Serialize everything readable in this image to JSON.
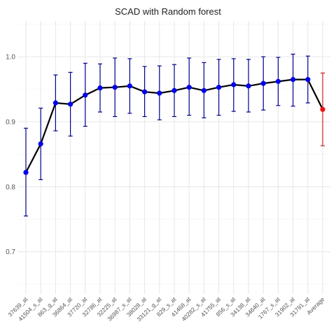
{
  "chart_data": {
    "type": "line",
    "title": "SCAD with Random forest",
    "xlabel": "",
    "ylabel": "",
    "ylim": [
      0.635,
      1.055
    ],
    "yticks": [
      0.7,
      0.8,
      0.9,
      1.0
    ],
    "yticklabels": [
      "0.7",
      "0.8",
      "0.9",
      "1.0"
    ],
    "grid": true,
    "legend": "none",
    "categories": [
      "37639_at",
      "41504_s_at",
      "863_g_at",
      "36864_at",
      "37720_at",
      "32786_at",
      "32225_at",
      "36987_s_at",
      "38028_at",
      "33121_g_at",
      "829_s_at",
      "41468_at",
      "40282_s_at",
      "41755_at",
      "856_s_at",
      "34138_at",
      "34640_at",
      "1767_s_at",
      "31902_at",
      "31791_at",
      "Average"
    ],
    "series": [
      {
        "values": [
          0.822,
          0.866,
          0.929,
          0.927,
          0.941,
          0.952,
          0.953,
          0.955,
          0.946,
          0.944,
          0.948,
          0.953,
          0.948,
          0.953,
          0.957,
          0.955,
          0.959,
          0.962,
          0.965,
          0.965,
          0.919
        ],
        "lower": [
          0.755,
          0.811,
          0.886,
          0.878,
          0.893,
          0.915,
          0.908,
          0.913,
          0.908,
          0.903,
          0.908,
          0.91,
          0.906,
          0.91,
          0.916,
          0.915,
          0.918,
          0.925,
          0.924,
          0.929,
          0.863
        ],
        "upper": [
          0.89,
          0.921,
          0.972,
          0.976,
          0.99,
          0.989,
          0.998,
          0.997,
          0.985,
          0.986,
          0.988,
          0.998,
          0.991,
          0.996,
          0.997,
          0.996,
          1.0,
          0.999,
          1.004,
          1.001,
          0.975
        ]
      }
    ],
    "colors": {
      "point": "#0000ee",
      "errorbar": "#00008b",
      "average_point": "#ee1111",
      "average_errorbar": "#cc2222",
      "line": "#000000",
      "grid": "#e6e6e6"
    }
  }
}
